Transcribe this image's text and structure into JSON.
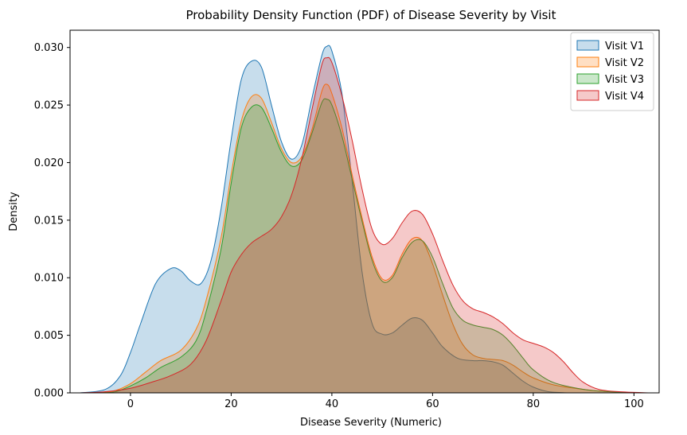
{
  "chart_data": {
    "type": "area",
    "title": "Probability Density Function (PDF) of Disease Severity by Visit",
    "xlabel": "Disease Severity (Numeric)",
    "ylabel": "Density",
    "xlim": [
      -12,
      105
    ],
    "ylim": [
      0,
      0.0315
    ],
    "xticks": [
      0,
      20,
      40,
      60,
      80,
      100
    ],
    "xtick_labels": [
      "0",
      "20",
      "40",
      "60",
      "80",
      "100"
    ],
    "yticks": [
      0,
      0.005,
      0.01,
      0.015,
      0.02,
      0.025,
      0.03
    ],
    "ytick_labels": [
      "0.000",
      "0.005",
      "0.010",
      "0.015",
      "0.020",
      "0.025",
      "0.030"
    ],
    "grid": false,
    "legend_position": "top-right",
    "series": [
      {
        "name": "Visit V1",
        "color": "#1f77b4",
        "points": [
          [
            -10,
            0
          ],
          [
            -5,
            0.0003
          ],
          [
            -2,
            0.0015
          ],
          [
            0,
            0.0035
          ],
          [
            2,
            0.006
          ],
          [
            5,
            0.0095
          ],
          [
            8,
            0.0108
          ],
          [
            10,
            0.0106
          ],
          [
            12,
            0.0097
          ],
          [
            14,
            0.0095
          ],
          [
            16,
            0.0115
          ],
          [
            18,
            0.016
          ],
          [
            20,
            0.022
          ],
          [
            22,
            0.0272
          ],
          [
            24,
            0.0288
          ],
          [
            26,
            0.0283
          ],
          [
            28,
            0.025
          ],
          [
            30,
            0.0218
          ],
          [
            32,
            0.0203
          ],
          [
            34,
            0.0215
          ],
          [
            36,
            0.0255
          ],
          [
            38,
            0.0293
          ],
          [
            39,
            0.0301
          ],
          [
            40,
            0.0297
          ],
          [
            42,
            0.026
          ],
          [
            44,
            0.0185
          ],
          [
            46,
            0.0105
          ],
          [
            48,
            0.006
          ],
          [
            50,
            0.0051
          ],
          [
            52,
            0.0052
          ],
          [
            54,
            0.0059
          ],
          [
            56,
            0.0065
          ],
          [
            58,
            0.0063
          ],
          [
            60,
            0.0052
          ],
          [
            62,
            0.004
          ],
          [
            65,
            0.003
          ],
          [
            68,
            0.0028
          ],
          [
            70,
            0.0028
          ],
          [
            72,
            0.0027
          ],
          [
            74,
            0.0024
          ],
          [
            76,
            0.0017
          ],
          [
            78,
            0.001
          ],
          [
            80,
            0.0005
          ],
          [
            83,
            0.0001
          ],
          [
            87,
            0
          ]
        ]
      },
      {
        "name": "Visit V2",
        "color": "#ff7f0e",
        "points": [
          [
            -6,
            0
          ],
          [
            -3,
            0.0002
          ],
          [
            0,
            0.0008
          ],
          [
            3,
            0.0018
          ],
          [
            6,
            0.0028
          ],
          [
            10,
            0.0037
          ],
          [
            13,
            0.0055
          ],
          [
            15,
            0.008
          ],
          [
            18,
            0.0135
          ],
          [
            20,
            0.019
          ],
          [
            22,
            0.0236
          ],
          [
            24,
            0.0257
          ],
          [
            26,
            0.0256
          ],
          [
            28,
            0.0235
          ],
          [
            30,
            0.0212
          ],
          [
            32,
            0.02
          ],
          [
            34,
            0.0205
          ],
          [
            36,
            0.0228
          ],
          [
            38,
            0.0262
          ],
          [
            39,
            0.0268
          ],
          [
            40,
            0.026
          ],
          [
            42,
            0.023
          ],
          [
            44,
            0.019
          ],
          [
            46,
            0.0152
          ],
          [
            48,
            0.0118
          ],
          [
            50,
            0.0099
          ],
          [
            52,
            0.0102
          ],
          [
            54,
            0.0121
          ],
          [
            56,
            0.0134
          ],
          [
            58,
            0.0132
          ],
          [
            60,
            0.0112
          ],
          [
            62,
            0.0085
          ],
          [
            64,
            0.006
          ],
          [
            66,
            0.0042
          ],
          [
            68,
            0.0033
          ],
          [
            70,
            0.003
          ],
          [
            72,
            0.0029
          ],
          [
            74,
            0.0028
          ],
          [
            76,
            0.0024
          ],
          [
            78,
            0.0018
          ],
          [
            80,
            0.0013
          ],
          [
            84,
            0.0007
          ],
          [
            90,
            0.0003
          ],
          [
            95,
            0.0001
          ],
          [
            100,
            0
          ]
        ]
      },
      {
        "name": "Visit V3",
        "color": "#2ca02c",
        "points": [
          [
            -6,
            0
          ],
          [
            -3,
            0.0001
          ],
          [
            0,
            0.0006
          ],
          [
            3,
            0.0013
          ],
          [
            6,
            0.0022
          ],
          [
            10,
            0.0031
          ],
          [
            13,
            0.0045
          ],
          [
            15,
            0.007
          ],
          [
            18,
            0.0125
          ],
          [
            20,
            0.0182
          ],
          [
            22,
            0.023
          ],
          [
            24,
            0.0248
          ],
          [
            26,
            0.0248
          ],
          [
            28,
            0.023
          ],
          [
            30,
            0.0209
          ],
          [
            32,
            0.0197
          ],
          [
            34,
            0.0202
          ],
          [
            36,
            0.0225
          ],
          [
            38,
            0.0252
          ],
          [
            39,
            0.0255
          ],
          [
            40,
            0.025
          ],
          [
            42,
            0.0223
          ],
          [
            44,
            0.0186
          ],
          [
            46,
            0.0149
          ],
          [
            48,
            0.0115
          ],
          [
            50,
            0.0097
          ],
          [
            52,
            0.01
          ],
          [
            54,
            0.0118
          ],
          [
            56,
            0.0131
          ],
          [
            58,
            0.0132
          ],
          [
            60,
            0.0118
          ],
          [
            62,
            0.0095
          ],
          [
            64,
            0.0074
          ],
          [
            66,
            0.0063
          ],
          [
            68,
            0.0059
          ],
          [
            70,
            0.0057
          ],
          [
            72,
            0.0055
          ],
          [
            74,
            0.005
          ],
          [
            76,
            0.0041
          ],
          [
            78,
            0.003
          ],
          [
            80,
            0.002
          ],
          [
            84,
            0.0009
          ],
          [
            90,
            0.0003
          ],
          [
            95,
            0.0001
          ],
          [
            100,
            0
          ]
        ]
      },
      {
        "name": "Visit V4",
        "color": "#d62728",
        "points": [
          [
            -10,
            0
          ],
          [
            -5,
            0.0001
          ],
          [
            0,
            0.0004
          ],
          [
            4,
            0.0009
          ],
          [
            8,
            0.0015
          ],
          [
            12,
            0.0025
          ],
          [
            15,
            0.0045
          ],
          [
            18,
            0.008
          ],
          [
            20,
            0.0105
          ],
          [
            22,
            0.012
          ],
          [
            24,
            0.013
          ],
          [
            26,
            0.0136
          ],
          [
            28,
            0.0142
          ],
          [
            30,
            0.0153
          ],
          [
            32,
            0.0172
          ],
          [
            34,
            0.0203
          ],
          [
            36,
            0.0245
          ],
          [
            38,
            0.0285
          ],
          [
            39,
            0.0291
          ],
          [
            40,
            0.0287
          ],
          [
            42,
            0.0258
          ],
          [
            44,
            0.022
          ],
          [
            46,
            0.0177
          ],
          [
            48,
            0.0142
          ],
          [
            50,
            0.0129
          ],
          [
            52,
            0.0134
          ],
          [
            54,
            0.0148
          ],
          [
            56,
            0.0158
          ],
          [
            58,
            0.0155
          ],
          [
            60,
            0.0138
          ],
          [
            62,
            0.0115
          ],
          [
            64,
            0.0094
          ],
          [
            66,
            0.008
          ],
          [
            68,
            0.0073
          ],
          [
            70,
            0.007
          ],
          [
            72,
            0.0066
          ],
          [
            74,
            0.006
          ],
          [
            76,
            0.0052
          ],
          [
            78,
            0.0046
          ],
          [
            80,
            0.0043
          ],
          [
            82,
            0.004
          ],
          [
            84,
            0.0035
          ],
          [
            86,
            0.0027
          ],
          [
            88,
            0.0017
          ],
          [
            90,
            0.0009
          ],
          [
            93,
            0.0003
          ],
          [
            97,
            0.0001
          ],
          [
            103,
            0
          ]
        ]
      }
    ]
  }
}
